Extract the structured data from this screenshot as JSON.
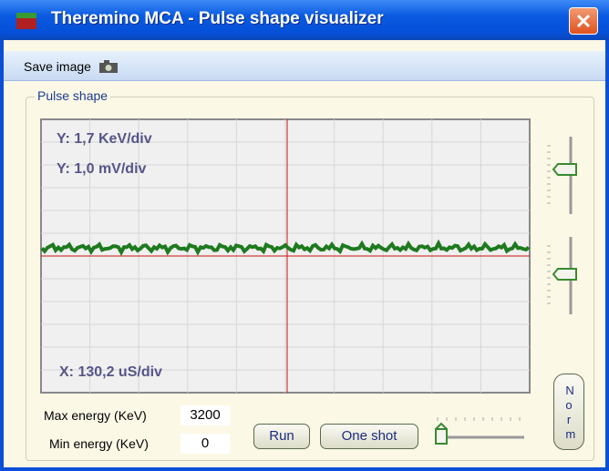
{
  "window": {
    "title": "Theremino MCA - Pulse shape visualizer"
  },
  "toolbar": {
    "save_image": "Save image"
  },
  "group": {
    "label": "Pulse shape"
  },
  "scope": {
    "y_label_1": "Y: 1,7 KeV/div",
    "y_label_2": "Y: 1,0 mV/div",
    "x_label": "X: 130,2 uS/div"
  },
  "controls": {
    "max_energy_label": "Max energy (KeV)",
    "max_energy_value": "3200",
    "min_energy_label": "Min energy (KeV)",
    "min_energy_value": "0",
    "run": "Run",
    "one_shot": "One shot",
    "norm": "Norm"
  }
}
